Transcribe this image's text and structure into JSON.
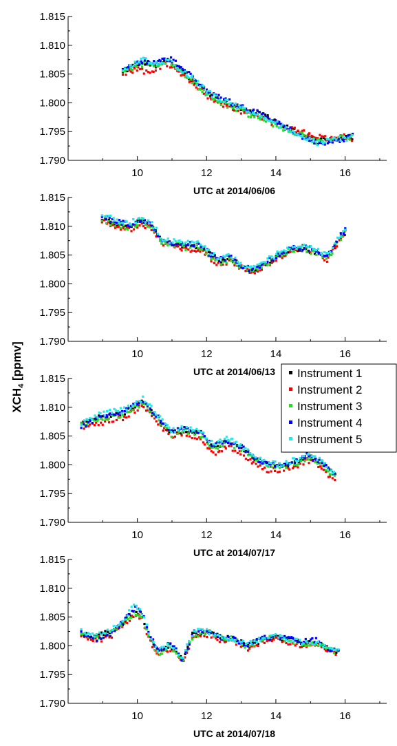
{
  "figure": {
    "ylabel_main": "XCH",
    "ylabel_sub": "4",
    "ylabel_unit": " [ppmv]"
  },
  "legend": {
    "entries": [
      {
        "name": "Instrument 1",
        "color": "#000000"
      },
      {
        "name": "Instrument 2",
        "color": "#ff0000"
      },
      {
        "name": "Instrument 3",
        "color": "#22dd22"
      },
      {
        "name": "Instrument 4",
        "color": "#0000ff"
      },
      {
        "name": "Instrument 5",
        "color": "#22e8e8"
      }
    ]
  },
  "chart_data": [
    {
      "type": "scatter",
      "xlabel": "UTC at 2014/06/06",
      "ylabel": "XCH4 [ppmv]",
      "xlim": [
        8,
        17.2
      ],
      "ylim": [
        1.79,
        1.815
      ],
      "xticks": [
        10,
        12,
        14,
        16
      ],
      "yticks": [
        1.79,
        1.795,
        1.8,
        1.805,
        1.81,
        1.815
      ],
      "ytick_labels": [
        "1.790",
        "1.795",
        "1.800",
        "1.805",
        "1.810",
        "1.815"
      ],
      "x": [
        9.6,
        10.0,
        10.2,
        10.5,
        10.9,
        11.2,
        11.6,
        12.0,
        12.4,
        12.8,
        13.2,
        13.6,
        14.0,
        14.4,
        14.8,
        15.2,
        15.6,
        16.0,
        16.2
      ],
      "series": [
        {
          "name": "Instrument 1",
          "values": [
            1.8055,
            1.8065,
            1.807,
            1.8065,
            1.8075,
            1.806,
            1.804,
            1.802,
            1.8005,
            1.7995,
            1.7985,
            1.798,
            1.7965,
            1.7955,
            1.7945,
            1.7935,
            1.7935,
            1.794,
            1.794
          ]
        },
        {
          "name": "Instrument 2",
          "values": [
            1.805,
            1.806,
            1.8055,
            1.8058,
            1.8068,
            1.8053,
            1.8033,
            1.8013,
            1.7998,
            1.799,
            1.798,
            1.7975,
            1.7962,
            1.7955,
            1.7948,
            1.794,
            1.7938,
            1.7942,
            1.7938
          ]
        },
        {
          "name": "Instrument 3",
          "values": [
            1.8055,
            1.8063,
            1.8068,
            1.8063,
            1.8073,
            1.8058,
            1.8035,
            1.8015,
            1.8,
            1.7992,
            1.798,
            1.7975,
            1.796,
            1.7952,
            1.7942,
            1.7932,
            1.7935,
            1.794,
            1.794
          ]
        },
        {
          "name": "Instrument 4",
          "values": [
            1.8058,
            1.8068,
            1.8072,
            1.8068,
            1.8078,
            1.8065,
            1.8045,
            1.8022,
            1.8008,
            1.7998,
            1.7988,
            1.7982,
            1.7968,
            1.7955,
            1.794,
            1.7928,
            1.7932,
            1.7938,
            1.7942
          ]
        },
        {
          "name": "Instrument 5",
          "values": [
            1.8055,
            1.807,
            1.8078,
            1.8068,
            1.8075,
            1.806,
            1.8042,
            1.802,
            1.8005,
            1.7996,
            1.7985,
            1.7978,
            1.7964,
            1.7953,
            1.7942,
            1.793,
            1.7934,
            1.7938,
            1.794
          ]
        }
      ]
    },
    {
      "type": "scatter",
      "xlabel": "UTC at 2014/06/13",
      "ylabel": "XCH4 [ppmv]",
      "xlim": [
        8,
        17.2
      ],
      "ylim": [
        1.79,
        1.815
      ],
      "xticks": [
        10,
        12,
        14,
        16
      ],
      "yticks": [
        1.79,
        1.795,
        1.8,
        1.805,
        1.81,
        1.815
      ],
      "ytick_labels": [
        "1.790",
        "1.795",
        "1.800",
        "1.805",
        "1.810",
        "1.815"
      ],
      "x": [
        9.0,
        9.4,
        9.8,
        10.1,
        10.4,
        10.7,
        11.0,
        11.4,
        11.8,
        12.1,
        12.4,
        12.7,
        13.0,
        13.3,
        13.7,
        14.0,
        14.4,
        14.8,
        15.2,
        15.5,
        15.8,
        16.0
      ],
      "series": [
        {
          "name": "Instrument 1",
          "values": [
            1.8115,
            1.8105,
            1.81,
            1.811,
            1.81,
            1.8075,
            1.807,
            1.8065,
            1.8065,
            1.805,
            1.804,
            1.8045,
            1.803,
            1.8022,
            1.8035,
            1.8045,
            1.806,
            1.806,
            1.8055,
            1.8045,
            1.8075,
            1.809
          ]
        },
        {
          "name": "Instrument 2",
          "values": [
            1.811,
            1.81,
            1.8095,
            1.8105,
            1.8095,
            1.807,
            1.8068,
            1.806,
            1.806,
            1.8045,
            1.803,
            1.804,
            1.8028,
            1.802,
            1.8032,
            1.8042,
            1.8058,
            1.8065,
            1.8052,
            1.8042,
            1.8072,
            1.8088
          ]
        },
        {
          "name": "Instrument 3",
          "values": [
            1.8112,
            1.8102,
            1.8098,
            1.8108,
            1.8098,
            1.8072,
            1.8069,
            1.8063,
            1.8062,
            1.8048,
            1.8035,
            1.8043,
            1.8029,
            1.8021,
            1.8034,
            1.8044,
            1.8059,
            1.8059,
            1.8054,
            1.8044,
            1.8073,
            1.8089
          ]
        },
        {
          "name": "Instrument 4",
          "values": [
            1.8118,
            1.8108,
            1.8102,
            1.8112,
            1.8102,
            1.8078,
            1.8072,
            1.8068,
            1.8068,
            1.8052,
            1.8042,
            1.8048,
            1.8032,
            1.8024,
            1.8037,
            1.8047,
            1.8062,
            1.8063,
            1.8058,
            1.8048,
            1.808,
            1.8093
          ]
        },
        {
          "name": "Instrument 5",
          "values": [
            1.812,
            1.811,
            1.8105,
            1.8115,
            1.8105,
            1.808,
            1.8074,
            1.807,
            1.807,
            1.8055,
            1.8044,
            1.805,
            1.8034,
            1.8026,
            1.804,
            1.805,
            1.8064,
            1.8064,
            1.8059,
            1.8049,
            1.8078,
            1.8091
          ]
        }
      ]
    },
    {
      "type": "scatter",
      "xlabel": "UTC at 2014/07/17",
      "ylabel": "XCH4 [ppmv]",
      "xlim": [
        8,
        17.2
      ],
      "ylim": [
        1.79,
        1.815
      ],
      "xticks": [
        10,
        12,
        14,
        16
      ],
      "yticks": [
        1.79,
        1.795,
        1.8,
        1.805,
        1.81,
        1.815
      ],
      "ytick_labels": [
        "1.790",
        "1.795",
        "1.800",
        "1.805",
        "1.810",
        "1.815"
      ],
      "x": [
        8.4,
        8.8,
        9.2,
        9.6,
        10.0,
        10.2,
        10.6,
        11.0,
        11.4,
        11.8,
        12.2,
        12.6,
        13.0,
        13.4,
        13.8,
        14.2,
        14.6,
        14.9,
        15.3,
        15.7
      ],
      "series": [
        {
          "name": "Instrument 1",
          "values": [
            1.807,
            1.808,
            1.8085,
            1.809,
            1.8105,
            1.811,
            1.808,
            1.8055,
            1.806,
            1.8055,
            1.803,
            1.804,
            1.803,
            1.801,
            1.8,
            1.7998,
            1.8005,
            1.8015,
            1.8005,
            1.798
          ]
        },
        {
          "name": "Instrument 2",
          "values": [
            1.8065,
            1.807,
            1.8078,
            1.8082,
            1.8098,
            1.8102,
            1.8072,
            1.8048,
            1.8055,
            1.8045,
            1.802,
            1.8032,
            1.802,
            1.8002,
            1.799,
            1.7992,
            1.7998,
            1.8008,
            1.7998,
            1.797
          ]
        },
        {
          "name": "Instrument 3",
          "values": [
            1.8068,
            1.8078,
            1.8082,
            1.8088,
            1.8102,
            1.8108,
            1.8078,
            1.8052,
            1.8058,
            1.8052,
            1.8028,
            1.8038,
            1.8028,
            1.8008,
            1.7998,
            1.7996,
            1.8003,
            1.8012,
            1.8003,
            1.7978
          ]
        },
        {
          "name": "Instrument 4",
          "values": [
            1.8068,
            1.808,
            1.8088,
            1.8092,
            1.8108,
            1.8112,
            1.8082,
            1.8058,
            1.8062,
            1.8058,
            1.8032,
            1.8042,
            1.8032,
            1.8012,
            1.8001,
            1.8,
            1.8008,
            1.8016,
            1.8006,
            1.7982
          ]
        },
        {
          "name": "Instrument 5",
          "values": [
            1.8072,
            1.8085,
            1.8092,
            1.8095,
            1.811,
            1.8115,
            1.8085,
            1.806,
            1.8064,
            1.806,
            1.8034,
            1.8045,
            1.8034,
            1.8014,
            1.8002,
            1.8001,
            1.801,
            1.8018,
            1.8008,
            1.7984
          ]
        }
      ]
    },
    {
      "type": "scatter",
      "xlabel": "UTC at 2014/07/18",
      "ylabel": "XCH4 [ppmv]",
      "xlim": [
        8,
        17.2
      ],
      "ylim": [
        1.79,
        1.815
      ],
      "xticks": [
        10,
        12,
        14,
        16
      ],
      "yticks": [
        1.79,
        1.795,
        1.8,
        1.805,
        1.81,
        1.815
      ],
      "ytick_labels": [
        "1.790",
        "1.795",
        "1.800",
        "1.805",
        "1.810",
        "1.815"
      ],
      "x": [
        8.4,
        8.8,
        9.2,
        9.6,
        9.9,
        10.1,
        10.4,
        10.6,
        10.9,
        11.1,
        11.3,
        11.6,
        12.0,
        12.4,
        12.8,
        13.2,
        13.6,
        14.0,
        14.4,
        14.8,
        15.2,
        15.5,
        15.8
      ],
      "series": [
        {
          "name": "Instrument 1",
          "values": [
            1.802,
            1.8015,
            1.8025,
            1.804,
            1.806,
            1.8055,
            1.801,
            1.799,
            1.8,
            1.7995,
            1.7975,
            1.802,
            1.8025,
            1.8015,
            1.801,
            1.8,
            1.801,
            1.8015,
            1.801,
            1.8005,
            1.8005,
            1.7995,
            1.799
          ]
        },
        {
          "name": "Instrument 2",
          "values": [
            1.8015,
            1.801,
            1.8015,
            1.8035,
            1.8055,
            1.805,
            1.8005,
            1.798,
            1.7995,
            1.7988,
            1.797,
            1.8015,
            1.802,
            1.801,
            1.8008,
            1.7995,
            1.8008,
            1.8012,
            1.8005,
            1.8,
            1.8002,
            1.7992,
            1.7988
          ]
        },
        {
          "name": "Instrument 3",
          "values": [
            1.8018,
            1.8014,
            1.8022,
            1.8038,
            1.8058,
            1.8053,
            1.8008,
            1.7985,
            1.7998,
            1.7992,
            1.7973,
            1.8018,
            1.8023,
            1.8013,
            1.8012,
            1.7998,
            1.8012,
            1.8016,
            1.8008,
            1.8004,
            1.8004,
            1.7994,
            1.7989
          ]
        },
        {
          "name": "Instrument 4",
          "values": [
            1.8022,
            1.8012,
            1.802,
            1.8042,
            1.8065,
            1.806,
            1.8015,
            1.7992,
            1.8002,
            1.7996,
            1.7972,
            1.8022,
            1.8028,
            1.8016,
            1.8012,
            1.8002,
            1.8012,
            1.8016,
            1.8012,
            1.8008,
            1.801,
            1.7996,
            1.799
          ]
        },
        {
          "name": "Instrument 5",
          "values": [
            1.8025,
            1.802,
            1.8025,
            1.8045,
            1.807,
            1.8062,
            1.8012,
            1.799,
            1.8003,
            1.7997,
            1.7978,
            1.8024,
            1.8026,
            1.8016,
            1.801,
            1.8003,
            1.8012,
            1.8017,
            1.801,
            1.8006,
            1.8006,
            1.7996,
            1.7992
          ]
        }
      ]
    }
  ]
}
